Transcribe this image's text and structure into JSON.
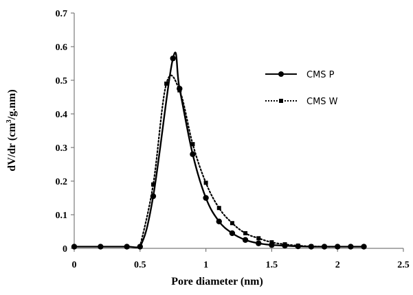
{
  "chart_data": {
    "type": "line",
    "title": "",
    "xlabel": "Pore diameter (nm)",
    "ylabel_main": "dV/dr (cm",
    "ylabel_sup": "3",
    "ylabel_tail": "/g.nm)",
    "xlim": [
      0,
      2.5
    ],
    "ylim": [
      0,
      0.7
    ],
    "x_ticks": [
      "0",
      "0.5",
      "1",
      "1.5",
      "2",
      "2.5"
    ],
    "y_ticks": [
      "0",
      "0.1",
      "0.2",
      "0.3",
      "0.4",
      "0.5",
      "0.6",
      "0.7"
    ],
    "grid": false,
    "legend_position": "top-right",
    "series": [
      {
        "name": "CMS P",
        "color": "#000000",
        "line": "solid",
        "marker": "circle",
        "x": [
          0,
          0.2,
          0.4,
          0.5,
          0.6,
          0.75,
          0.8,
          0.9,
          1.0,
          1.1,
          1.2,
          1.3,
          1.4,
          1.5,
          1.6,
          1.7,
          1.8,
          1.9,
          2.0,
          2.1,
          2.2
        ],
        "y": [
          0.005,
          0.005,
          0.005,
          0.005,
          0.155,
          0.565,
          0.475,
          0.28,
          0.15,
          0.08,
          0.045,
          0.025,
          0.015,
          0.01,
          0.008,
          0.006,
          0.005,
          0.005,
          0.005,
          0.005,
          0.005
        ]
      },
      {
        "name": "CMS W",
        "color": "#000000",
        "line": "dotted",
        "marker": "square",
        "x": [
          0.5,
          0.6,
          0.7,
          0.8,
          0.9,
          1.0,
          1.1,
          1.2,
          1.3,
          1.4,
          1.5,
          1.6,
          1.7,
          1.8,
          1.9,
          2.0
        ],
        "y": [
          0.005,
          0.19,
          0.49,
          0.47,
          0.31,
          0.195,
          0.12,
          0.075,
          0.045,
          0.03,
          0.018,
          0.012,
          0.008,
          0.006,
          0.005,
          0.005
        ]
      }
    ]
  }
}
